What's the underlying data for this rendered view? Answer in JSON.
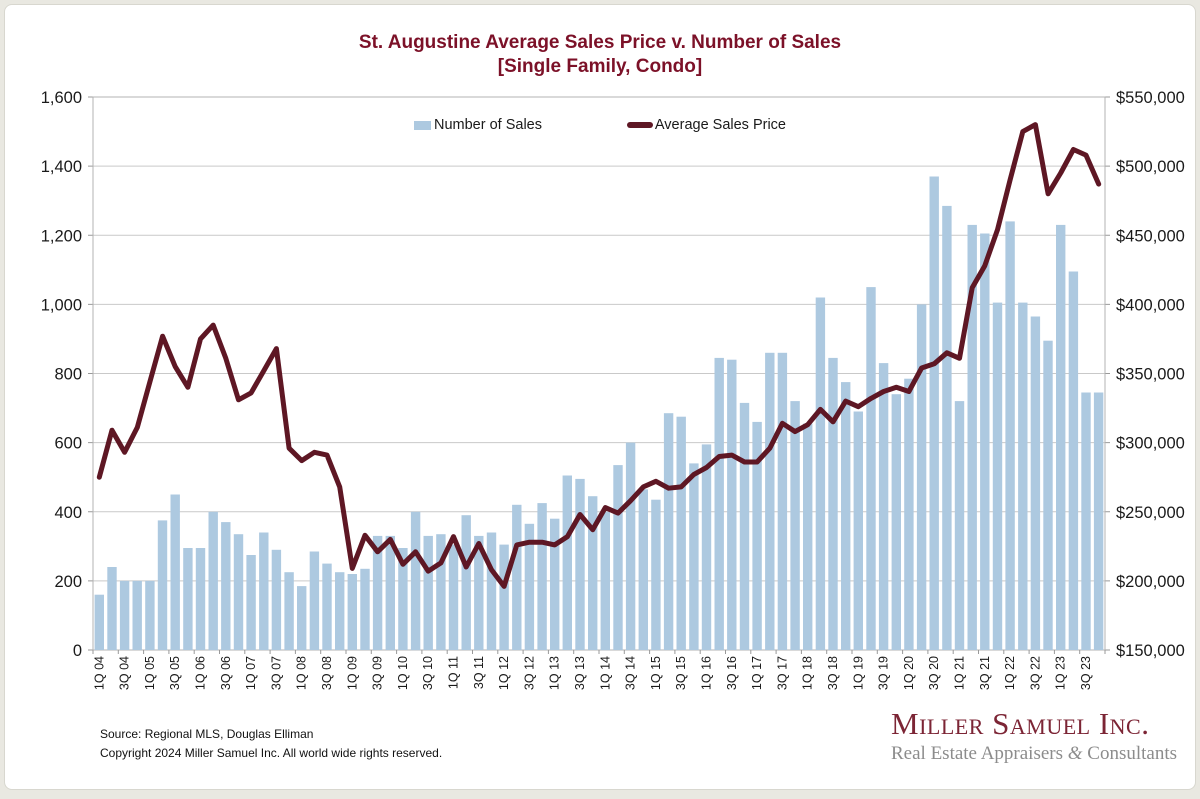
{
  "page": {
    "background": "#e9e8e1",
    "card_background": "#ffffff"
  },
  "title": {
    "line1": "St. Augustine Average Sales Price v. Number of Sales",
    "line2": "[Single Family, Condo]",
    "color": "#7c1128"
  },
  "legend": {
    "position": "top-center",
    "items": [
      {
        "label": "Number of Sales",
        "swatch_color": "#adc9e0",
        "type": "bar"
      },
      {
        "label": "Average Sales Price",
        "swatch_color": "#5e1724",
        "type": "line"
      }
    ]
  },
  "footer": {
    "source": "Source: Regional MLS, Douglas Elliman",
    "copyright": "Copyright 2024 Miller Samuel Inc.  All world wide rights reserved."
  },
  "logo": {
    "name": "Miller Samuel Inc.",
    "tagline_pre": "Real Estate Appraisers ",
    "tagline_amp": "&",
    "tagline_post": " Consultants",
    "name_color": "#7c2535",
    "tagline_color": "#8c8c8c"
  },
  "chart_data": {
    "type": "combo",
    "title": "St. Augustine Average Sales Price v. Number of Sales [Single Family, Condo]",
    "grid": "horizontal",
    "legend_position": "top-center",
    "x_tick_every": 2,
    "categories": [
      "1Q 04",
      "2Q 04",
      "3Q 04",
      "4Q 04",
      "1Q 05",
      "2Q 05",
      "3Q 05",
      "4Q 05",
      "1Q 06",
      "2Q 06",
      "3Q 06",
      "4Q 06",
      "1Q 07",
      "2Q 07",
      "3Q 07",
      "4Q 07",
      "1Q 08",
      "2Q 08",
      "3Q 08",
      "4Q 08",
      "1Q 09",
      "2Q 09",
      "3Q 09",
      "4Q 09",
      "1Q 10",
      "2Q 10",
      "3Q 10",
      "4Q 10",
      "1Q 11",
      "2Q 11",
      "3Q 11",
      "4Q 11",
      "1Q 12",
      "2Q 12",
      "3Q 12",
      "4Q 12",
      "1Q 13",
      "2Q 13",
      "3Q 13",
      "4Q 13",
      "1Q 14",
      "2Q 14",
      "3Q 14",
      "4Q 14",
      "1Q 15",
      "2Q 15",
      "3Q 15",
      "4Q 15",
      "1Q 16",
      "2Q 16",
      "3Q 16",
      "4Q 16",
      "1Q 17",
      "2Q 17",
      "3Q 17",
      "4Q 17",
      "1Q 18",
      "2Q 18",
      "3Q 18",
      "4Q 18",
      "1Q 19",
      "2Q 19",
      "3Q 19",
      "4Q 19",
      "1Q 20",
      "2Q 20",
      "3Q 20",
      "4Q 20",
      "1Q 21",
      "2Q 21",
      "3Q 21",
      "4Q 21",
      "1Q 22",
      "2Q 22",
      "3Q 22",
      "4Q 22",
      "1Q 23",
      "2Q 23",
      "3Q 23",
      "4Q 23"
    ],
    "series": [
      {
        "name": "Number of Sales",
        "type": "bar",
        "axis": "left",
        "color": "#adc9e0",
        "values": [
          160,
          240,
          200,
          200,
          200,
          375,
          450,
          295,
          295,
          400,
          370,
          335,
          275,
          340,
          290,
          225,
          185,
          285,
          250,
          225,
          220,
          235,
          330,
          330,
          295,
          400,
          330,
          335,
          305,
          390,
          330,
          340,
          305,
          420,
          365,
          425,
          380,
          505,
          495,
          445,
          400,
          535,
          600,
          465,
          435,
          685,
          675,
          540,
          595,
          845,
          840,
          715,
          660,
          860,
          860,
          720,
          655,
          1020,
          845,
          775,
          690,
          1050,
          830,
          740,
          785,
          1000,
          1370,
          1285,
          720,
          1230,
          1205,
          1005,
          1240,
          1005,
          965,
          895,
          1230,
          1095,
          745,
          745
        ]
      },
      {
        "name": "Average Sales Price",
        "type": "line",
        "axis": "right",
        "color": "#5e1724",
        "values": [
          275000,
          309000,
          293000,
          311000,
          344000,
          377000,
          355000,
          340000,
          375000,
          385000,
          361000,
          331000,
          336000,
          352000,
          368000,
          296000,
          287000,
          293000,
          291000,
          268000,
          209000,
          233000,
          221000,
          230000,
          212000,
          221000,
          207000,
          213000,
          232000,
          210000,
          227000,
          208000,
          196000,
          226000,
          228000,
          228000,
          226000,
          232000,
          248000,
          237000,
          253000,
          249000,
          258000,
          268000,
          272000,
          267000,
          268000,
          277000,
          282000,
          290000,
          291000,
          286000,
          286000,
          296000,
          314000,
          308000,
          313000,
          324000,
          315000,
          330000,
          326000,
          332000,
          337000,
          340000,
          337000,
          354000,
          357000,
          365000,
          361000,
          412000,
          428000,
          454000,
          490000,
          525000,
          530000,
          480000,
          495000,
          512000,
          508000,
          487000
        ]
      }
    ],
    "left_axis": {
      "title": "Number of Sales",
      "min": 0,
      "max": 1600,
      "step": 200,
      "tick_labels": [
        "0",
        "200",
        "400",
        "600",
        "800",
        "1,000",
        "1,200",
        "1,400",
        "1,600"
      ]
    },
    "right_axis": {
      "title": "Average Sales Price",
      "min": 150000,
      "max": 550000,
      "step": 50000,
      "tick_labels": [
        "$150,000",
        "$200,000",
        "$250,000",
        "$300,000",
        "$350,000",
        "$400,000",
        "$450,000",
        "$500,000",
        "$550,000"
      ]
    }
  }
}
